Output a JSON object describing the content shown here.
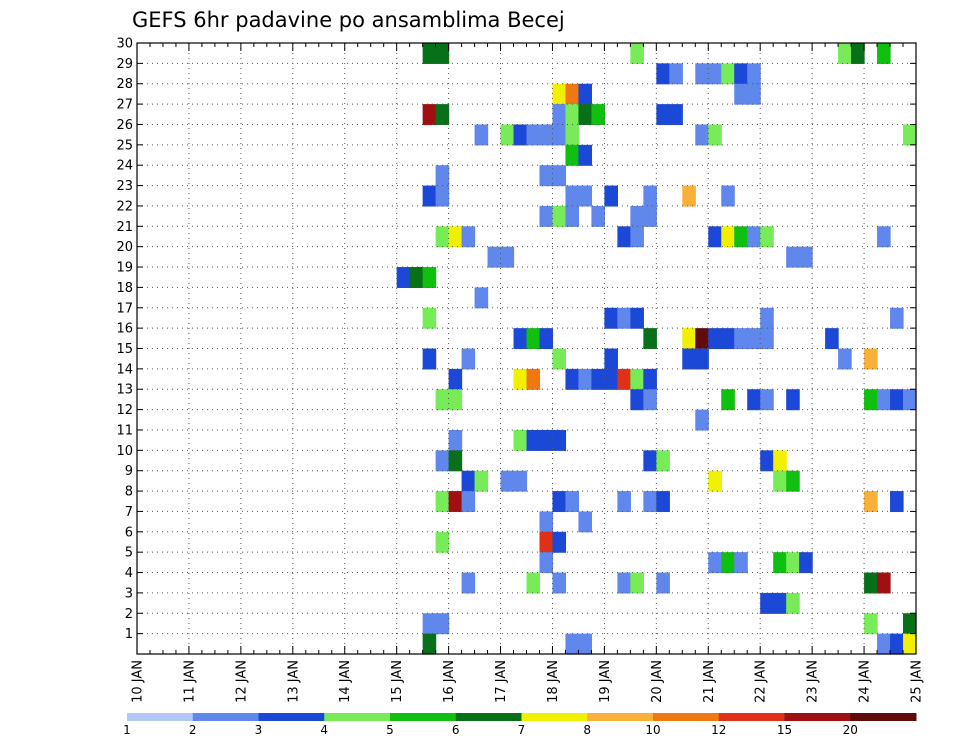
{
  "chart_data": {
    "type": "heatmap",
    "title": "GEFS 6hr padavine po ansamblima Becej",
    "xlabel": "",
    "ylabel": "",
    "x_tick_labels": [
      "10 JAN",
      "11 JAN",
      "12 JAN",
      "13 JAN",
      "14 JAN",
      "15 JAN",
      "16 JAN",
      "17 JAN",
      "18 JAN",
      "19 JAN",
      "20 JAN",
      "21 JAN",
      "22 JAN",
      "23 JAN",
      "24 JAN",
      "25 JAN"
    ],
    "y_tick_labels": [
      "1",
      "2",
      "3",
      "4",
      "5",
      "6",
      "7",
      "8",
      "9",
      "10",
      "11",
      "12",
      "13",
      "14",
      "15",
      "16",
      "17",
      "18",
      "19",
      "20",
      "21",
      "22",
      "23",
      "24",
      "25",
      "26",
      "27",
      "28",
      "29",
      "30"
    ],
    "x_unit": "6-hour step from 10 JAN 00Z",
    "xlim": [
      0,
      60
    ],
    "ylim": [
      0,
      30
    ],
    "grid": true,
    "colorbar": {
      "labels": [
        "1",
        "2",
        "3",
        "4",
        "5",
        "6",
        "7",
        "8",
        "10",
        "12",
        "15",
        "20"
      ],
      "colors": [
        "#b4c8f8",
        "#6088ec",
        "#1c48d8",
        "#78ec58",
        "#10c010",
        "#087018",
        "#f0f000",
        "#f8b038",
        "#f07810",
        "#e03018",
        "#a01010",
        "#600c0c"
      ]
    },
    "cells": [
      [
        22,
        30,
        5
      ],
      [
        23,
        30,
        5
      ],
      [
        38,
        30,
        3
      ],
      [
        54,
        30,
        3
      ],
      [
        55,
        30,
        5
      ],
      [
        57,
        30,
        4
      ],
      [
        40,
        29,
        2
      ],
      [
        41,
        29,
        1
      ],
      [
        43,
        29,
        1
      ],
      [
        44,
        29,
        1
      ],
      [
        45,
        29,
        3
      ],
      [
        46,
        29,
        2
      ],
      [
        47,
        29,
        1
      ],
      [
        32,
        28,
        6
      ],
      [
        33,
        28,
        8
      ],
      [
        34,
        28,
        2
      ],
      [
        46,
        28,
        1
      ],
      [
        47,
        28,
        1
      ],
      [
        22,
        27,
        10
      ],
      [
        23,
        27,
        5
      ],
      [
        32,
        27,
        1
      ],
      [
        33,
        27,
        3
      ],
      [
        34,
        27,
        5
      ],
      [
        35,
        27,
        4
      ],
      [
        40,
        27,
        2
      ],
      [
        41,
        27,
        2
      ],
      [
        26,
        26,
        1
      ],
      [
        28,
        26,
        3
      ],
      [
        29,
        26,
        2
      ],
      [
        30,
        26,
        1
      ],
      [
        31,
        26,
        1
      ],
      [
        32,
        26,
        1
      ],
      [
        33,
        26,
        3
      ],
      [
        43,
        26,
        1
      ],
      [
        44,
        26,
        3
      ],
      [
        59,
        26,
        3
      ],
      [
        33,
        25,
        4
      ],
      [
        34,
        25,
        2
      ],
      [
        23,
        24,
        1
      ],
      [
        31,
        24,
        1
      ],
      [
        32,
        24,
        1
      ],
      [
        22,
        23,
        2
      ],
      [
        23,
        23,
        1
      ],
      [
        33,
        23,
        1
      ],
      [
        34,
        23,
        1
      ],
      [
        36,
        23,
        2
      ],
      [
        39,
        23,
        1
      ],
      [
        42,
        23,
        7
      ],
      [
        45,
        23,
        1
      ],
      [
        31,
        22,
        1
      ],
      [
        32,
        22,
        3
      ],
      [
        33,
        22,
        1
      ],
      [
        35,
        22,
        1
      ],
      [
        38,
        22,
        1
      ],
      [
        39,
        22,
        1
      ],
      [
        23,
        21,
        3
      ],
      [
        24,
        21,
        6
      ],
      [
        25,
        21,
        1
      ],
      [
        37,
        21,
        2
      ],
      [
        38,
        21,
        1
      ],
      [
        44,
        21,
        2
      ],
      [
        45,
        21,
        6
      ],
      [
        46,
        21,
        4
      ],
      [
        47,
        21,
        1
      ],
      [
        48,
        21,
        3
      ],
      [
        57,
        21,
        1
      ],
      [
        27,
        20,
        1
      ],
      [
        28,
        20,
        1
      ],
      [
        50,
        20,
        1
      ],
      [
        51,
        20,
        1
      ],
      [
        20,
        19,
        2
      ],
      [
        21,
        19,
        5
      ],
      [
        22,
        19,
        4
      ],
      [
        26,
        18,
        1
      ],
      [
        22,
        17,
        3
      ],
      [
        36,
        17,
        2
      ],
      [
        37,
        17,
        1
      ],
      [
        38,
        17,
        2
      ],
      [
        48,
        17,
        1
      ],
      [
        58,
        17,
        1
      ],
      [
        29,
        16,
        2
      ],
      [
        30,
        16,
        4
      ],
      [
        31,
        16,
        2
      ],
      [
        39,
        16,
        5
      ],
      [
        42,
        16,
        6
      ],
      [
        43,
        16,
        11
      ],
      [
        44,
        16,
        2
      ],
      [
        45,
        16,
        2
      ],
      [
        46,
        16,
        1
      ],
      [
        47,
        16,
        1
      ],
      [
        48,
        16,
        1
      ],
      [
        53,
        16,
        2
      ],
      [
        22,
        15,
        2
      ],
      [
        25,
        15,
        1
      ],
      [
        32,
        15,
        3
      ],
      [
        36,
        15,
        2
      ],
      [
        42,
        15,
        2
      ],
      [
        43,
        15,
        2
      ],
      [
        54,
        15,
        1
      ],
      [
        56,
        15,
        7
      ],
      [
        24,
        14,
        2
      ],
      [
        29,
        14,
        6
      ],
      [
        30,
        14,
        8
      ],
      [
        33,
        14,
        2
      ],
      [
        34,
        14,
        1
      ],
      [
        35,
        14,
        2
      ],
      [
        36,
        14,
        2
      ],
      [
        37,
        14,
        9
      ],
      [
        38,
        14,
        3
      ],
      [
        39,
        14,
        2
      ],
      [
        23,
        13,
        3
      ],
      [
        24,
        13,
        3
      ],
      [
        38,
        13,
        2
      ],
      [
        39,
        13,
        1
      ],
      [
        45,
        13,
        4
      ],
      [
        47,
        13,
        2
      ],
      [
        48,
        13,
        1
      ],
      [
        50,
        13,
        2
      ],
      [
        56,
        13,
        4
      ],
      [
        57,
        13,
        1
      ],
      [
        58,
        13,
        2
      ],
      [
        59,
        13,
        1
      ],
      [
        43,
        12,
        1
      ],
      [
        24,
        11,
        1
      ],
      [
        29,
        11,
        3
      ],
      [
        30,
        11,
        2
      ],
      [
        31,
        11,
        2
      ],
      [
        32,
        11,
        2
      ],
      [
        23,
        10,
        1
      ],
      [
        24,
        10,
        5
      ],
      [
        39,
        10,
        2
      ],
      [
        40,
        10,
        3
      ],
      [
        48,
        10,
        2
      ],
      [
        49,
        10,
        6
      ],
      [
        25,
        9,
        2
      ],
      [
        26,
        9,
        3
      ],
      [
        28,
        9,
        1
      ],
      [
        29,
        9,
        1
      ],
      [
        44,
        9,
        6
      ],
      [
        49,
        9,
        3
      ],
      [
        50,
        9,
        4
      ],
      [
        23,
        8,
        3
      ],
      [
        24,
        8,
        10
      ],
      [
        25,
        8,
        1
      ],
      [
        32,
        8,
        2
      ],
      [
        33,
        8,
        1
      ],
      [
        37,
        8,
        1
      ],
      [
        39,
        8,
        1
      ],
      [
        40,
        8,
        2
      ],
      [
        56,
        8,
        7
      ],
      [
        58,
        8,
        2
      ],
      [
        31,
        7,
        1
      ],
      [
        34,
        7,
        1
      ],
      [
        23,
        6,
        3
      ],
      [
        31,
        6,
        9
      ],
      [
        32,
        6,
        2
      ],
      [
        31,
        5,
        1
      ],
      [
        44,
        5,
        1
      ],
      [
        45,
        5,
        4
      ],
      [
        46,
        5,
        1
      ],
      [
        49,
        5,
        4
      ],
      [
        50,
        5,
        3
      ],
      [
        51,
        5,
        2
      ],
      [
        25,
        4,
        1
      ],
      [
        30,
        4,
        3
      ],
      [
        32,
        4,
        1
      ],
      [
        37,
        4,
        1
      ],
      [
        38,
        4,
        3
      ],
      [
        40,
        4,
        1
      ],
      [
        56,
        4,
        5
      ],
      [
        57,
        4,
        10
      ],
      [
        48,
        3,
        2
      ],
      [
        49,
        3,
        2
      ],
      [
        50,
        3,
        3
      ],
      [
        22,
        2,
        1
      ],
      [
        23,
        2,
        1
      ],
      [
        56,
        2,
        3
      ],
      [
        59,
        2,
        5
      ],
      [
        22,
        1,
        5
      ],
      [
        33,
        1,
        1
      ],
      [
        34,
        1,
        1
      ],
      [
        57,
        1,
        1
      ],
      [
        58,
        1,
        2
      ],
      [
        59,
        1,
        6
      ]
    ]
  }
}
